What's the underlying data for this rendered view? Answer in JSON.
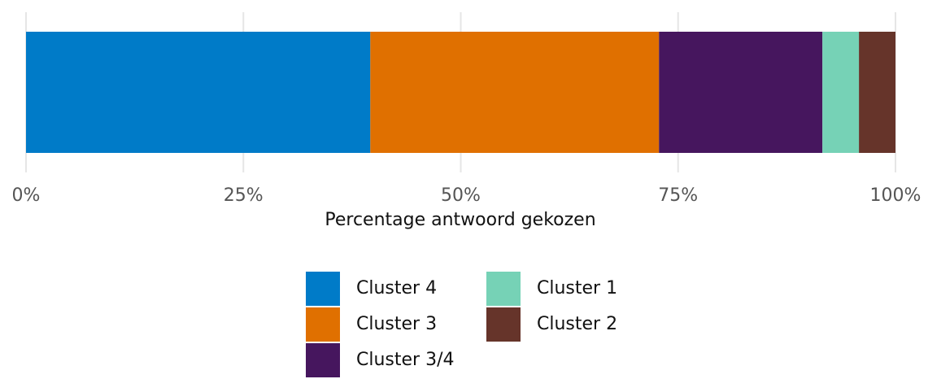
{
  "chart_data": {
    "type": "stacked-bar",
    "orientation": "horizontal",
    "x_label": "Percentage antwoord gekozen",
    "series": [
      {
        "name": "Cluster 4",
        "color": "#007bc8",
        "values": [
          39.6
        ]
      },
      {
        "name": "Cluster 3",
        "color": "#e07000",
        "values": [
          33.2
        ]
      },
      {
        "name": "Cluster 3/4",
        "color": "#46165e",
        "values": [
          18.8
        ]
      },
      {
        "name": "Cluster 1",
        "color": "#76d2b6",
        "values": [
          4.2
        ]
      },
      {
        "name": "Cluster 2",
        "color": "#66342a",
        "values": [
          4.2
        ]
      }
    ],
    "xlim": [
      0,
      100
    ],
    "xticks": [
      {
        "value": 0,
        "label": "0%"
      },
      {
        "value": 25,
        "label": "25%"
      },
      {
        "value": 50,
        "label": "50%"
      },
      {
        "value": 75,
        "label": "75%"
      },
      {
        "value": 100,
        "label": "100%"
      }
    ],
    "grid": true,
    "legend": "bottom"
  }
}
